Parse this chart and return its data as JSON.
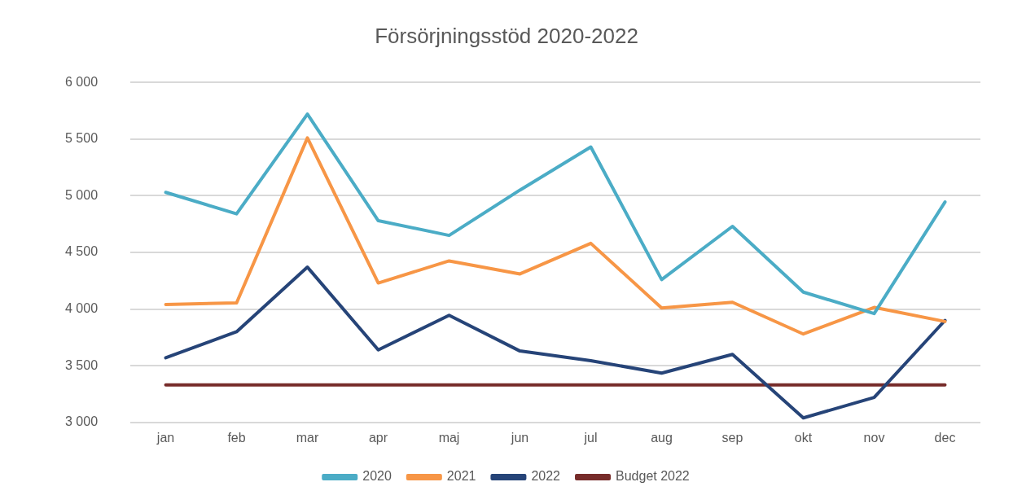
{
  "chart_data": {
    "type": "line",
    "title": "Försörjningsstöd 2020-2022",
    "categories": [
      "jan",
      "feb",
      "mar",
      "apr",
      "maj",
      "jun",
      "jul",
      "aug",
      "sep",
      "okt",
      "nov",
      "dec"
    ],
    "series": [
      {
        "name": "2020",
        "color": "#4bacc6",
        "values": [
          5030,
          4840,
          5720,
          4780,
          4650,
          5050,
          5430,
          4260,
          4730,
          4150,
          3960,
          4945
        ]
      },
      {
        "name": "2021",
        "color": "#f79646",
        "values": [
          4040,
          4055,
          5510,
          4230,
          4425,
          4310,
          4580,
          4010,
          4060,
          3780,
          4015,
          3890
        ]
      },
      {
        "name": "2022",
        "color": "#264478",
        "values": [
          3570,
          3800,
          4370,
          3640,
          3945,
          3630,
          3545,
          3435,
          3600,
          3040,
          3220,
          3900
        ]
      },
      {
        "name": "Budget 2022",
        "color": "#772c2a",
        "values": [
          3330,
          3330,
          3330,
          3330,
          3330,
          3330,
          3330,
          3330,
          3330,
          3330,
          3330,
          3330
        ]
      }
    ],
    "ylim": [
      3000,
      6000
    ],
    "yticks": [
      {
        "value": 3000,
        "label": "3 000"
      },
      {
        "value": 3500,
        "label": "3 500"
      },
      {
        "value": 4000,
        "label": "4 000"
      },
      {
        "value": 4500,
        "label": "4 500"
      },
      {
        "value": 5000,
        "label": "5 000"
      },
      {
        "value": 5500,
        "label": "5 500"
      },
      {
        "value": 6000,
        "label": "6 000"
      }
    ],
    "grid": "y",
    "legend": "bottom",
    "marker": "none",
    "line_style": "solid"
  }
}
